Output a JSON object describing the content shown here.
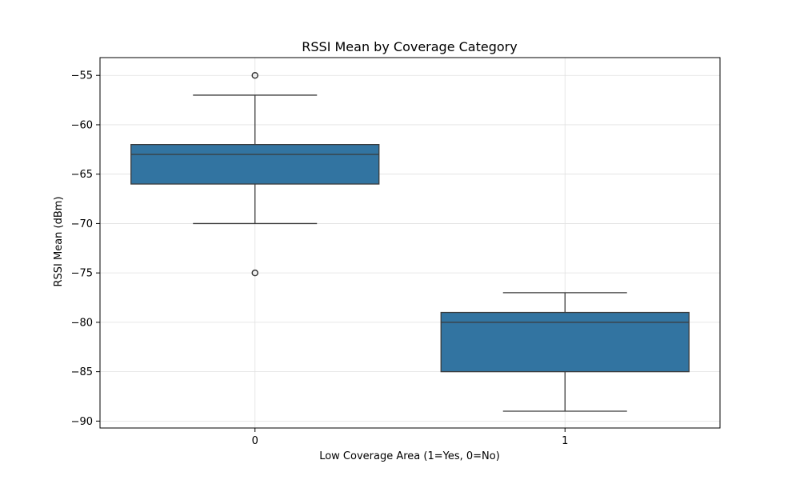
{
  "chart_data": {
    "type": "box",
    "title": "RSSI Mean by Coverage Category",
    "xlabel": "Low Coverage Area (1=Yes, 0=No)",
    "ylabel": "RSSI Mean (dBm)",
    "categories": [
      "0",
      "1"
    ],
    "ylim": [
      -90.7,
      -53.2
    ],
    "yticks": [
      -55,
      -60,
      -65,
      -70,
      -75,
      -80,
      -85,
      -90
    ],
    "grid": true,
    "box_color": "#3274a1",
    "boxes": [
      {
        "category": "0",
        "whisker_low": -70,
        "q1": -66,
        "median": -63,
        "q3": -62,
        "whisker_high": -57,
        "outliers": [
          -55,
          -75
        ]
      },
      {
        "category": "1",
        "whisker_low": -89,
        "q1": -85,
        "median": -80,
        "q3": -79,
        "whisker_high": -77,
        "outliers": []
      }
    ]
  }
}
